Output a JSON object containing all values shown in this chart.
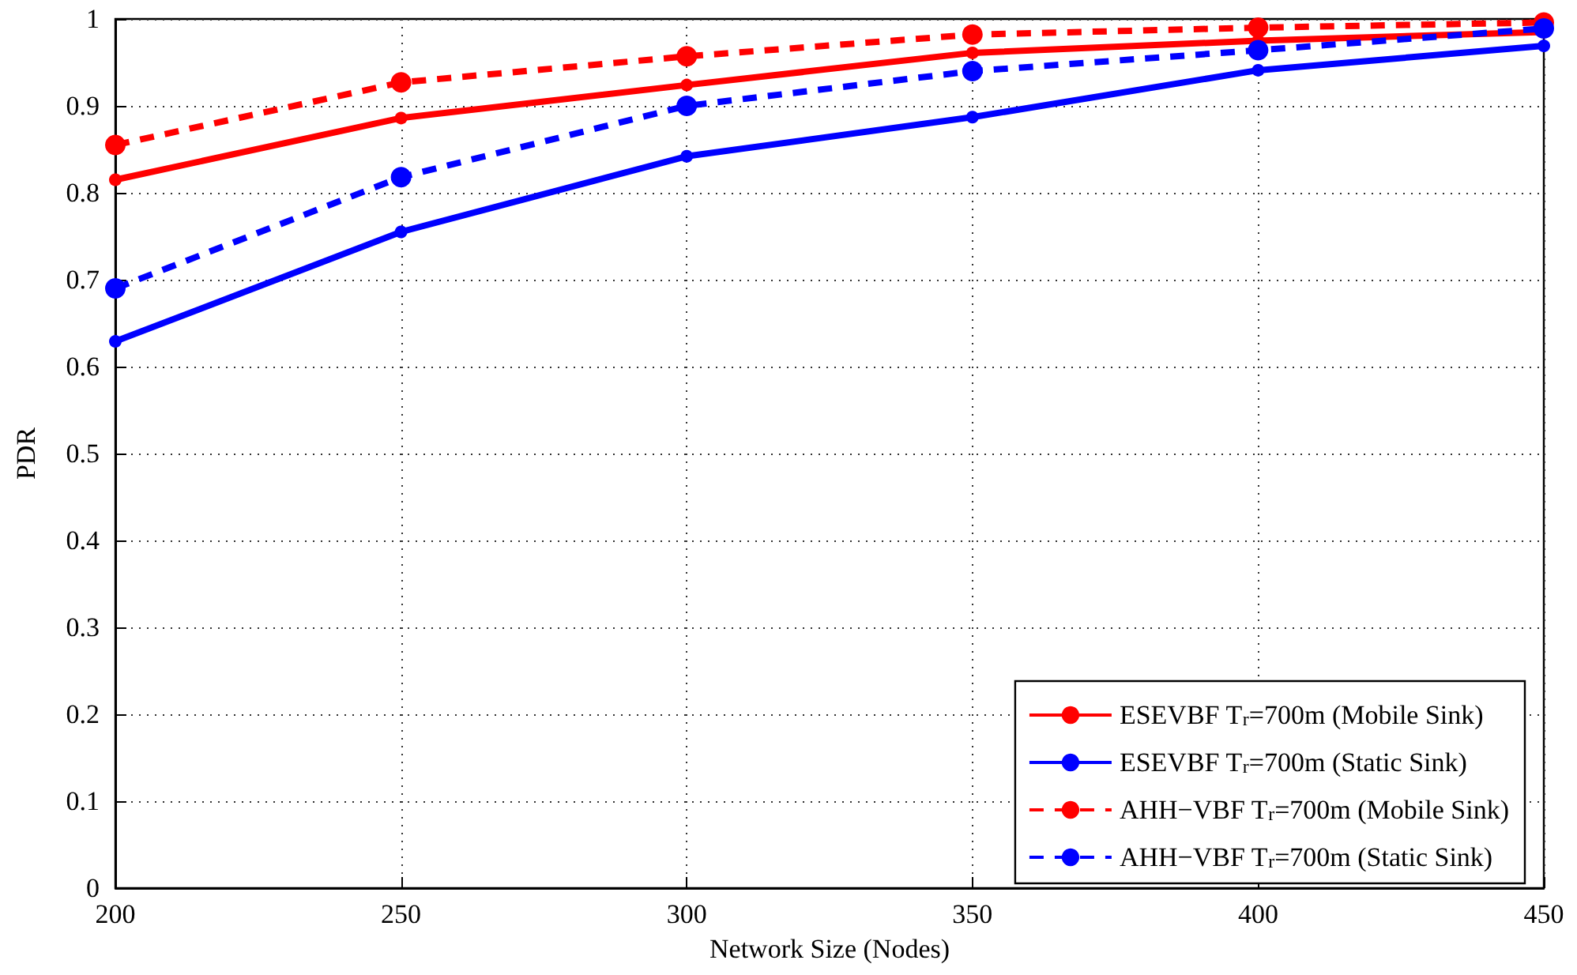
{
  "chart_data": {
    "type": "line",
    "xlabel": "Network Size (Nodes)",
    "ylabel": "PDR",
    "x": [
      200,
      250,
      300,
      350,
      400,
      450
    ],
    "series": [
      {
        "name": "ESEVBF T$_{r}$=700m (Mobile Sink)",
        "color": "#ff0000",
        "line_style": "solid",
        "values": [
          0.815,
          0.886,
          0.924,
          0.961,
          0.975,
          0.985
        ]
      },
      {
        "name": "ESEVBF T$_{r}$=700m (Static Sink)",
        "color": "#0000ff",
        "line_style": "solid",
        "values": [
          0.629,
          0.755,
          0.842,
          0.887,
          0.941,
          0.969
        ]
      },
      {
        "name": "AHH−VBF T$_{r}$=700m (Mobile Sink)",
        "color": "#ff0000",
        "line_style": "dashed",
        "values": [
          0.855,
          0.927,
          0.957,
          0.982,
          0.99,
          0.996
        ]
      },
      {
        "name": "AHH−VBF T$_{r}$=700m (Static Sink)",
        "color": "#0000ff",
        "line_style": "dashed",
        "values": [
          0.69,
          0.818,
          0.9,
          0.94,
          0.964,
          0.989
        ]
      }
    ],
    "xlim": [
      200,
      450
    ],
    "xticks": [
      200,
      250,
      300,
      350,
      400,
      450
    ],
    "ylim": [
      0,
      1
    ],
    "yticks": [
      0,
      0.1,
      0.2,
      0.3,
      0.4,
      0.5,
      0.6,
      0.7,
      0.8,
      0.9,
      1
    ],
    "grid": true,
    "legend": "bottom right",
    "marker": "circle"
  }
}
